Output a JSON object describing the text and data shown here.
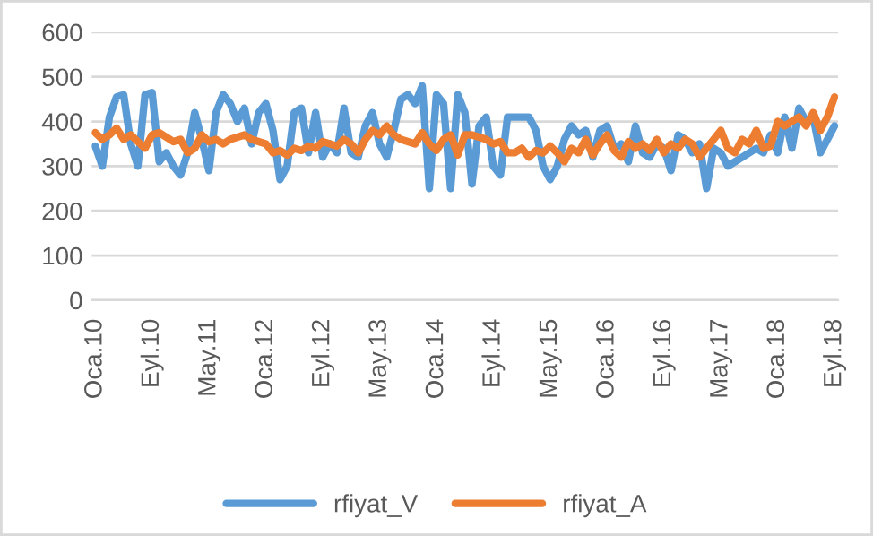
{
  "chart_data": {
    "type": "line",
    "categories": [
      "Oca.10",
      null,
      null,
      null,
      null,
      null,
      null,
      null,
      "Eyl.10",
      null,
      null,
      null,
      null,
      null,
      null,
      null,
      "May.11",
      null,
      null,
      null,
      null,
      null,
      null,
      null,
      "Oca.12",
      null,
      null,
      null,
      null,
      null,
      null,
      null,
      "Eyl.12",
      null,
      null,
      null,
      null,
      null,
      null,
      null,
      "May.13",
      null,
      null,
      null,
      null,
      null,
      null,
      null,
      "Oca.14",
      null,
      null,
      null,
      null,
      null,
      null,
      null,
      "Eyl.14",
      null,
      null,
      null,
      null,
      null,
      null,
      null,
      "May.15",
      null,
      null,
      null,
      null,
      null,
      null,
      null,
      "Oca.16",
      null,
      null,
      null,
      null,
      null,
      null,
      null,
      "Eyl.16",
      null,
      null,
      null,
      null,
      null,
      null,
      null,
      "May.17",
      null,
      null,
      null,
      null,
      null,
      null,
      null,
      "Oca.18",
      null,
      null,
      null,
      null,
      null,
      null,
      null,
      "Eyl.18"
    ],
    "series": [
      {
        "name": "rfiyat_V",
        "color": "#5b9bd5",
        "values": [
          345,
          300,
          410,
          455,
          460,
          350,
          300,
          460,
          465,
          310,
          330,
          300,
          280,
          330,
          420,
          360,
          290,
          420,
          460,
          440,
          400,
          430,
          350,
          420,
          440,
          380,
          270,
          300,
          420,
          430,
          330,
          420,
          320,
          350,
          330,
          430,
          330,
          320,
          390,
          420,
          350,
          320,
          380,
          450,
          460,
          440,
          480,
          250,
          460,
          440,
          250,
          460,
          420,
          260,
          390,
          410,
          300,
          280,
          410,
          410,
          410,
          410,
          380,
          300,
          270,
          300,
          360,
          390,
          370,
          380,
          320,
          380,
          390,
          340,
          350,
          310,
          390,
          330,
          320,
          350,
          340,
          290,
          370,
          360,
          330,
          350,
          250,
          340,
          330,
          300,
          310,
          320,
          330,
          340,
          330,
          370,
          330,
          410,
          340,
          430,
          400,
          410,
          330,
          360,
          390
        ]
      },
      {
        "name": "rfiyat_A",
        "color": "#ed7d31",
        "values": [
          375,
          360,
          370,
          385,
          360,
          370,
          355,
          340,
          370,
          375,
          365,
          355,
          360,
          330,
          340,
          370,
          355,
          360,
          350,
          360,
          365,
          370,
          360,
          355,
          350,
          330,
          335,
          325,
          340,
          335,
          345,
          340,
          355,
          350,
          345,
          360,
          350,
          330,
          360,
          380,
          370,
          390,
          370,
          360,
          355,
          350,
          375,
          350,
          335,
          360,
          370,
          325,
          370,
          370,
          365,
          360,
          350,
          355,
          330,
          330,
          340,
          320,
          335,
          330,
          345,
          330,
          310,
          340,
          330,
          360,
          325,
          350,
          370,
          335,
          320,
          355,
          340,
          350,
          335,
          360,
          330,
          350,
          340,
          360,
          350,
          320,
          340,
          360,
          380,
          340,
          330,
          360,
          350,
          380,
          340,
          345,
          400,
          390,
          400,
          410,
          390,
          420,
          380,
          410,
          455
        ]
      }
    ],
    "ylim": [
      0,
      600
    ],
    "yticks": [
      0,
      100,
      200,
      300,
      400,
      500,
      600
    ],
    "grid": "y",
    "legend": "bottom"
  }
}
